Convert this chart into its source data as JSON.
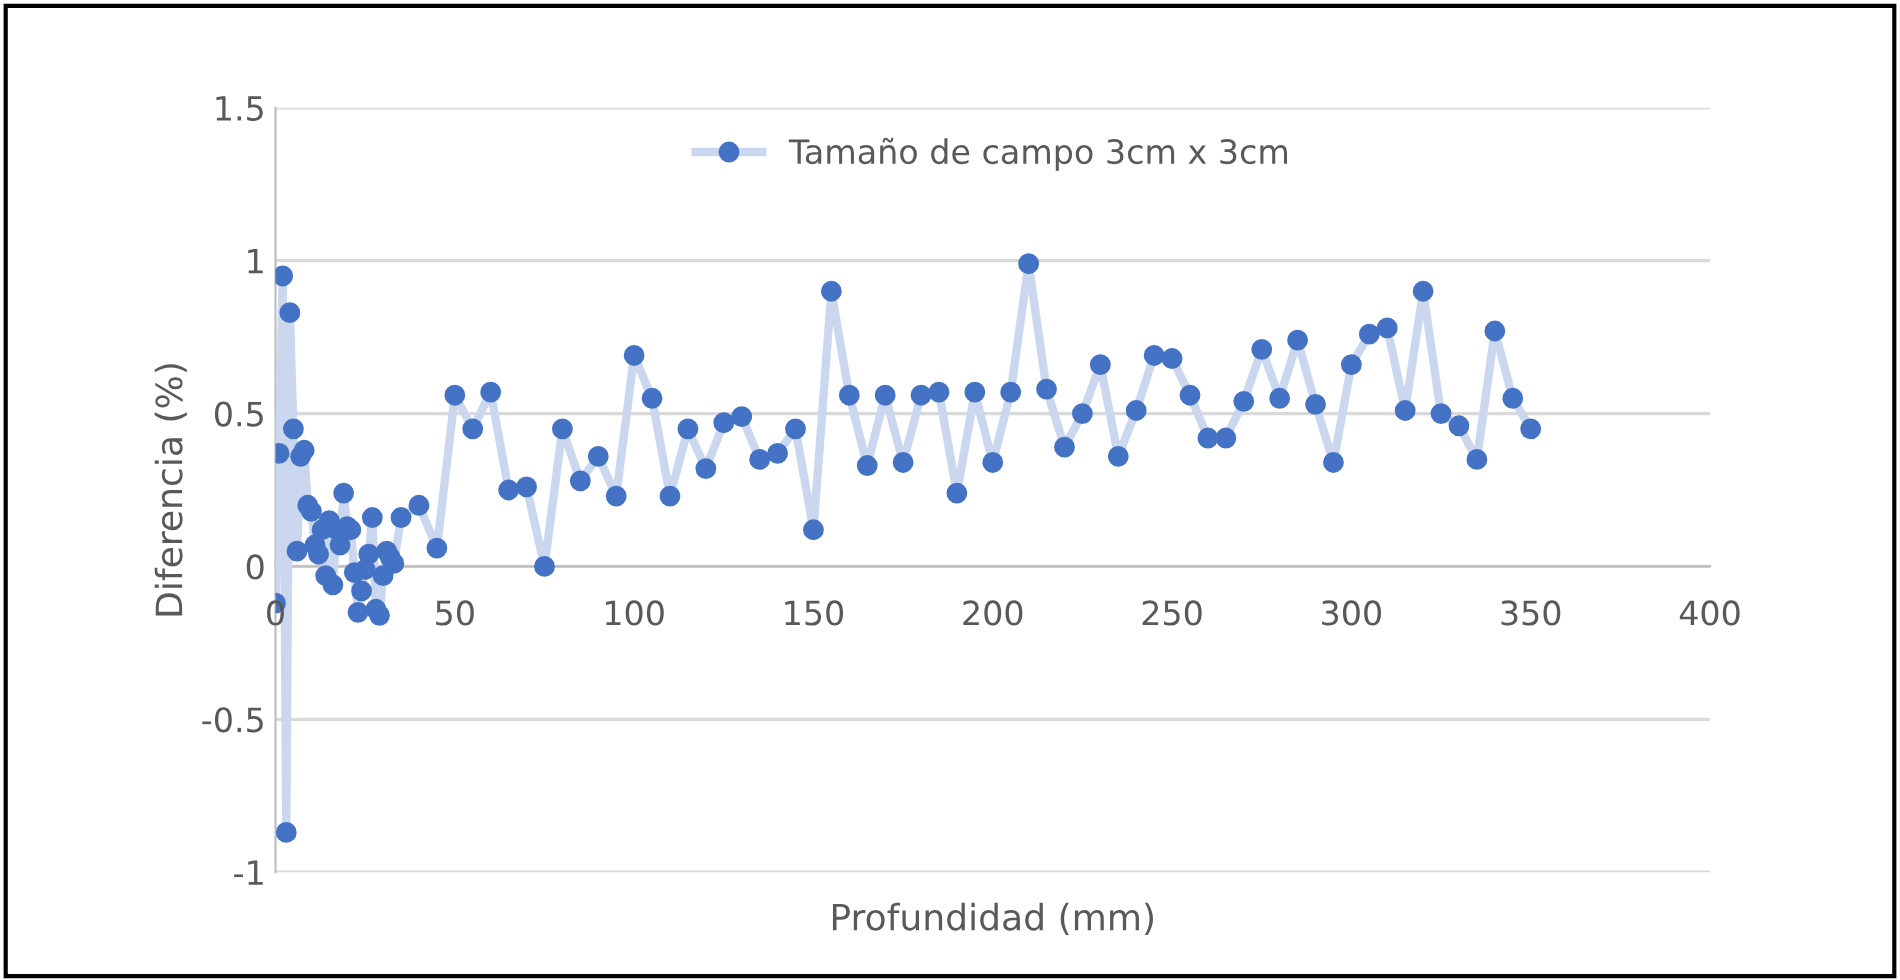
{
  "chart_data": {
    "type": "line",
    "xlabel": "Profundidad (mm)",
    "ylabel": "Diferencia (%)",
    "xlim": [
      0,
      400
    ],
    "xticks": [
      0,
      50,
      100,
      150,
      200,
      250,
      300,
      350,
      400
    ],
    "ylim": [
      -1,
      1.5
    ],
    "yticks": [
      -1,
      -0.5,
      0,
      0.5,
      1,
      1.5
    ],
    "grid": "y",
    "legend": "top",
    "marker": "circle",
    "line_style": "solid",
    "series": [
      {
        "name": "Tamaño de campo 3cm x 3cm",
        "color": "#4472c4",
        "x": [
          0,
          1,
          2,
          3,
          4,
          5,
          6,
          7,
          8,
          9,
          10,
          11,
          12,
          13,
          14,
          15,
          16,
          17,
          18,
          19,
          20,
          21,
          22,
          23,
          24,
          25,
          26,
          27,
          28,
          29,
          30,
          31,
          32,
          33,
          35,
          40,
          45,
          50,
          55,
          60,
          65,
          70,
          75,
          80,
          85,
          90,
          95,
          100,
          105,
          110,
          115,
          120,
          125,
          130,
          135,
          140,
          145,
          150,
          155,
          160,
          165,
          170,
          175,
          180,
          185,
          190,
          195,
          200,
          205,
          210,
          215,
          220,
          225,
          230,
          235,
          240,
          245,
          250,
          255,
          260,
          265,
          270,
          275,
          280,
          285,
          290,
          295,
          300,
          305,
          310,
          315,
          320,
          325,
          330,
          335,
          340,
          345,
          350
        ],
        "values": [
          -0.12,
          0.37,
          0.95,
          -0.87,
          0.83,
          0.45,
          0.05,
          0.36,
          0.38,
          0.2,
          0.18,
          0.07,
          0.04,
          0.12,
          -0.03,
          0.15,
          -0.06,
          0.12,
          0.07,
          0.24,
          0.13,
          0.12,
          -0.02,
          -0.15,
          -0.08,
          -0.01,
          0.04,
          0.16,
          -0.14,
          -0.16,
          -0.03,
          0.05,
          0.03,
          0.01,
          0.16,
          0.2,
          0.06,
          0.56,
          0.45,
          0.57,
          0.25,
          0.26,
          0,
          0.45,
          0.28,
          0.36,
          0.23,
          0.69,
          0.55,
          0.23,
          0.45,
          0.32,
          0.47,
          0.49,
          0.35,
          0.37,
          0.45,
          0.12,
          0.9,
          0.56,
          0.33,
          0.56,
          0.34,
          0.56,
          0.57,
          0.24,
          0.57,
          0.34,
          0.57,
          0.99,
          0.58,
          0.39,
          0.5,
          0.66,
          0.36,
          0.51,
          0.69,
          0.68,
          0.56,
          0.42,
          0.42,
          0.54,
          0.71,
          0.55,
          0.74,
          0.53,
          0.34,
          0.66,
          0.76,
          0.78,
          0.51,
          0.9,
          0.5,
          0.46,
          0.35,
          0.77,
          0.55,
          0.45
        ]
      }
    ]
  }
}
